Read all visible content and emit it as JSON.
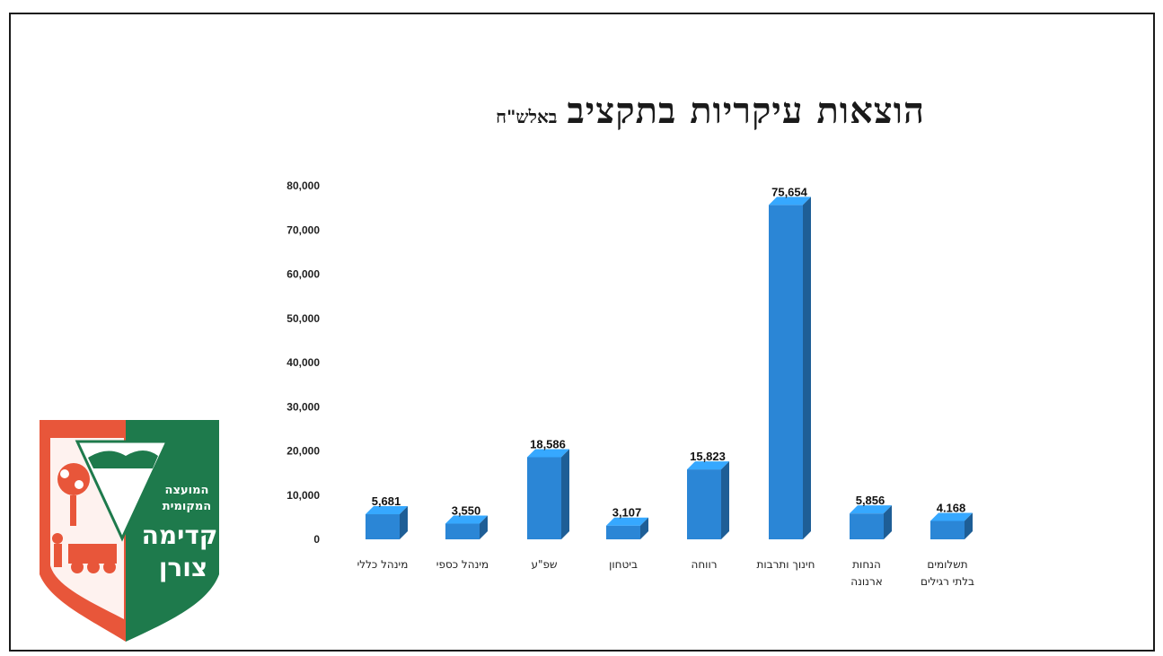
{
  "chart_data": {
    "type": "bar",
    "title": "הוצאות עיקריות בתקציב",
    "subtitle": "באלש\"ח",
    "categories": [
      "מינהל כללי",
      "מינהל כספי",
      "שפ\"ע",
      "ביטחון",
      "רווחה",
      "חינוך ותרבות",
      "הנחות ארנונה",
      "תשלומים בלתי רגילים"
    ],
    "category_lines": [
      [
        "מינהל כללי"
      ],
      [
        "מינהל כספי"
      ],
      [
        "שפ\"ע"
      ],
      [
        "ביטחון"
      ],
      [
        "רווחה"
      ],
      [
        "חינוך ותרבות"
      ],
      [
        "הנחות",
        "ארנונה"
      ],
      [
        "תשלומים",
        "בלתי רגילים"
      ]
    ],
    "values": [
      5681,
      3550,
      18586,
      3107,
      15823,
      75654,
      5856,
      4168
    ],
    "value_labels": [
      "5,681",
      "3,550",
      "18,586",
      "3,107",
      "15,823",
      "75,654",
      "5,856",
      "4.168"
    ],
    "ylim": [
      0,
      80000
    ],
    "yticks": [
      0,
      10000,
      20000,
      30000,
      40000,
      50000,
      60000,
      70000,
      80000
    ],
    "ytick_labels": [
      "0",
      "10,000",
      "20,000",
      "30,000",
      "40,000",
      "50,000",
      "60,000",
      "70,000",
      "80,000"
    ],
    "bar_color": "#2b86d6",
    "grid": false,
    "legend": "none"
  },
  "logo": {
    "line1": "המועצה",
    "line2": "המקומית",
    "line3": "קדימה",
    "line4": "צורן",
    "green": "#1e7a4c",
    "red": "#e8563a"
  }
}
